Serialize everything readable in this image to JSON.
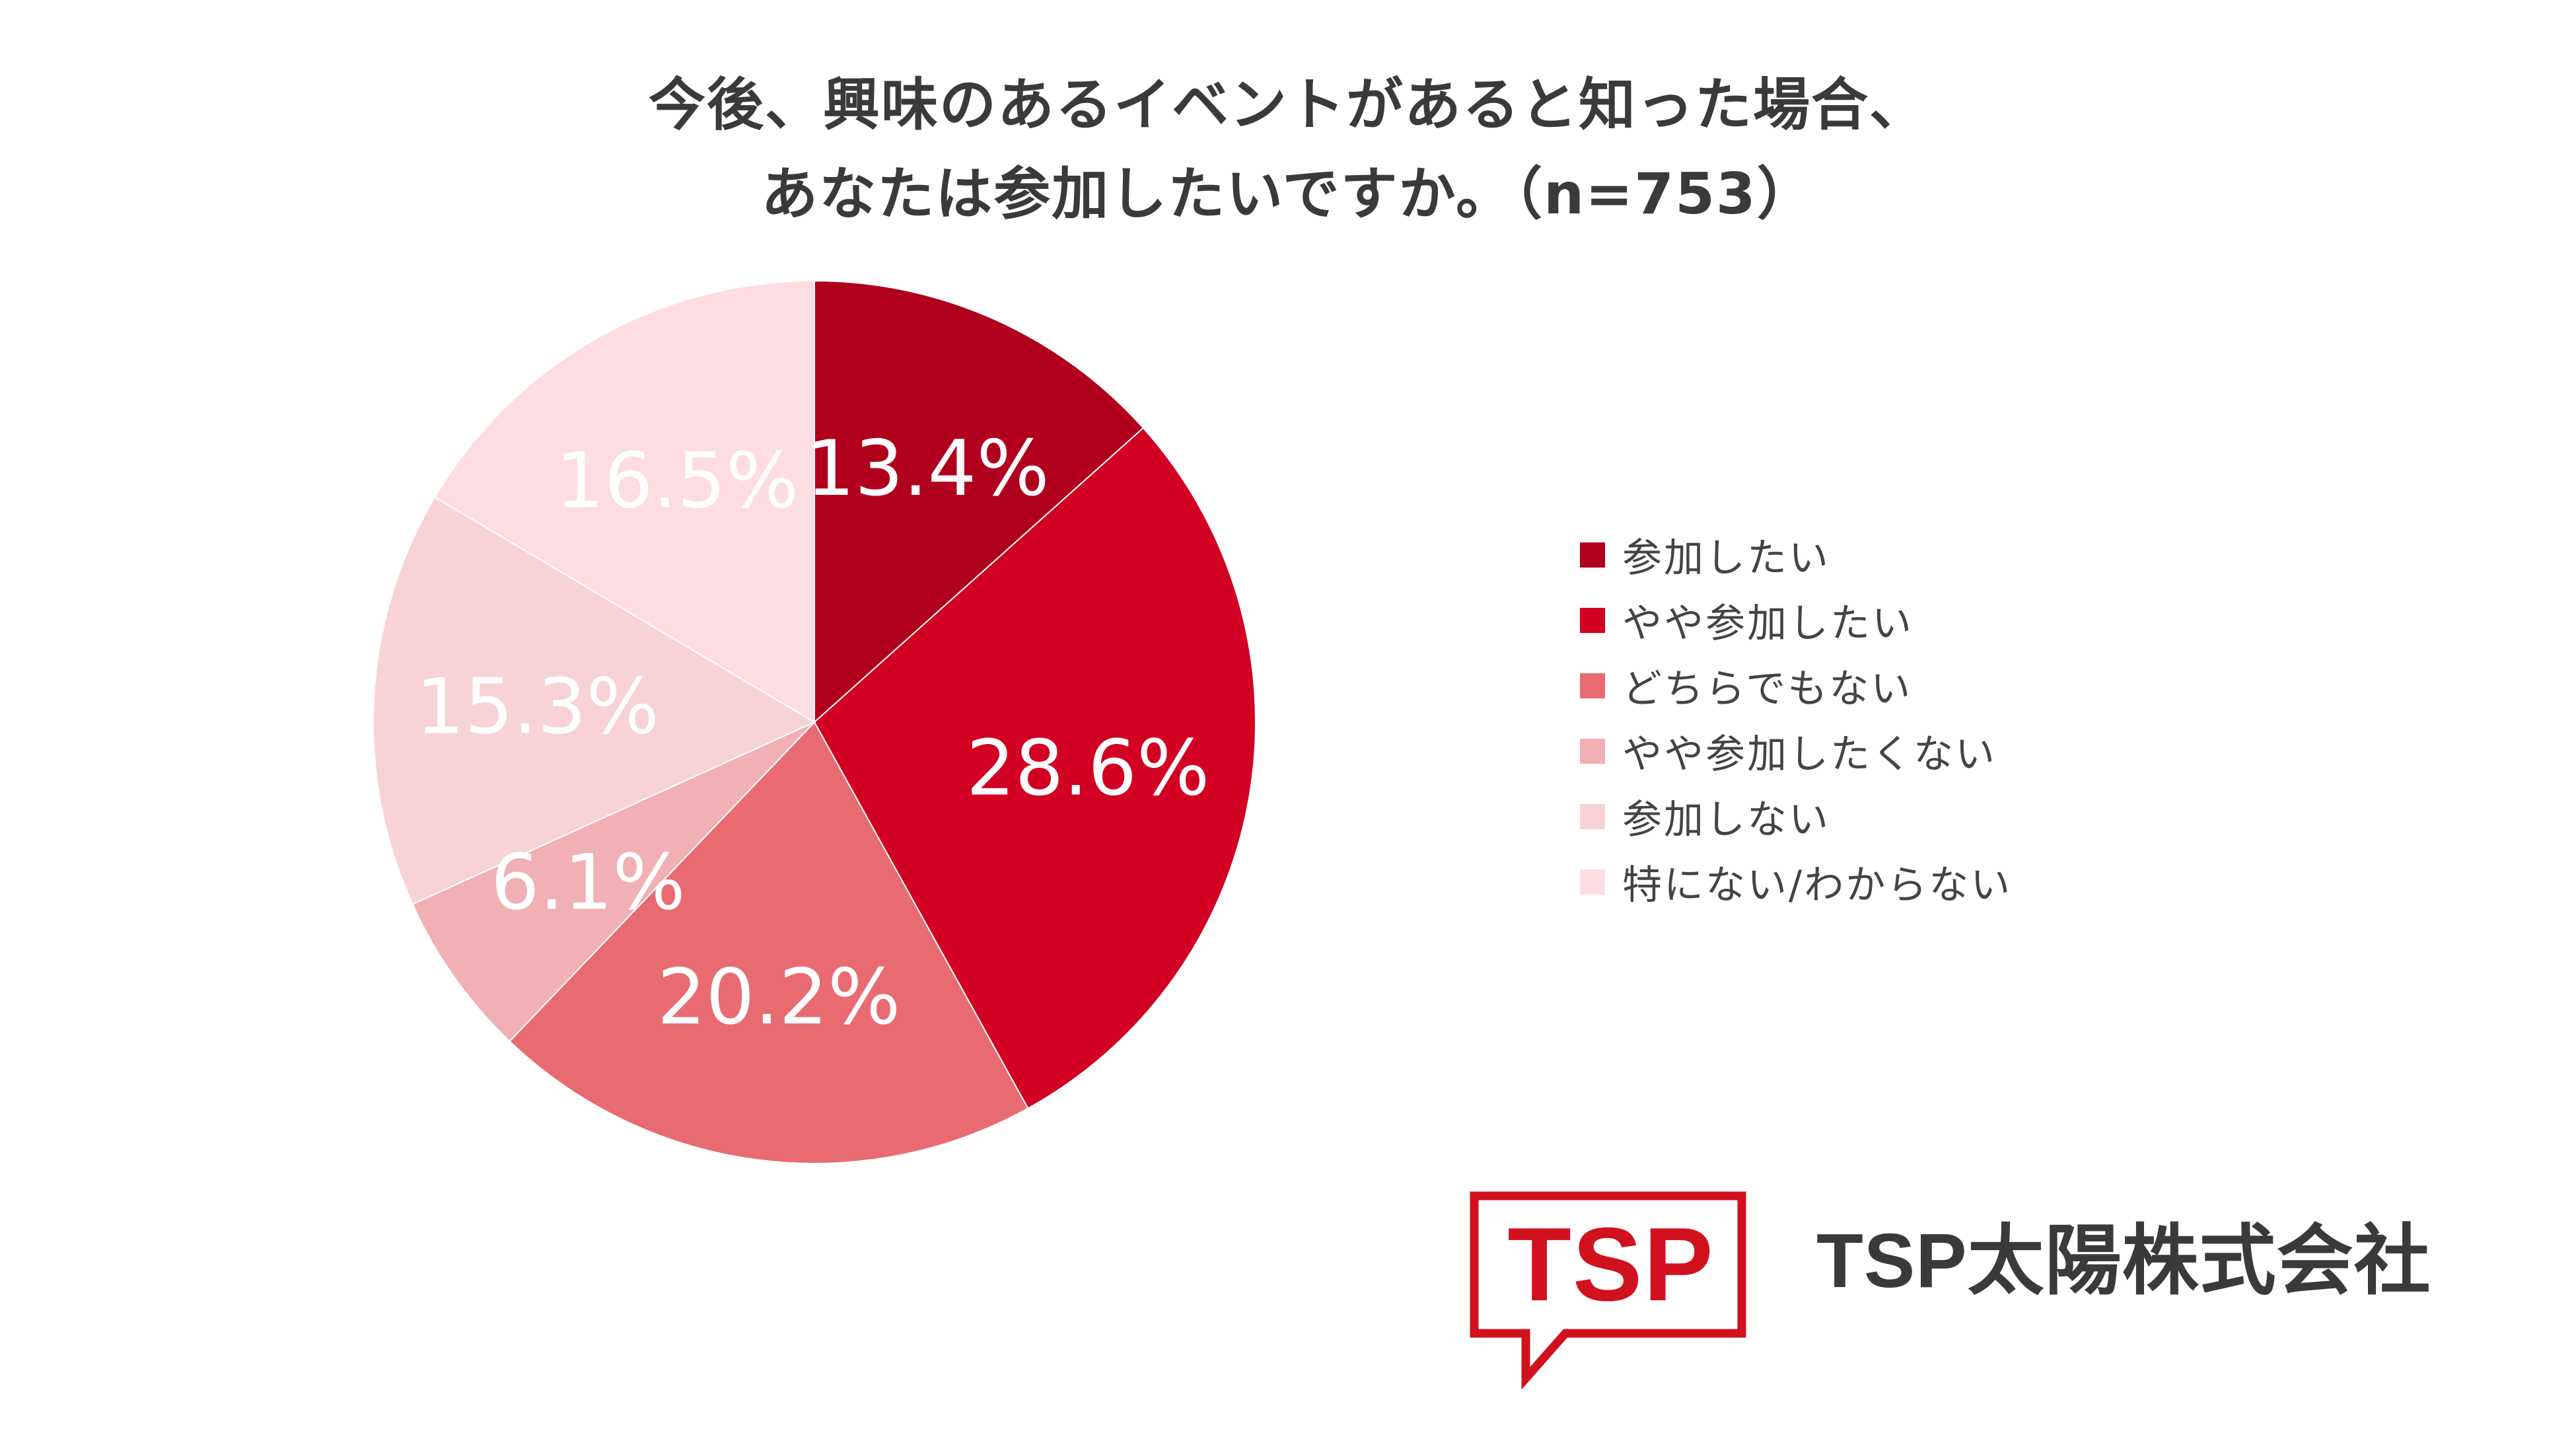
{
  "title": {
    "line1": "今後、興味のあるイベントがあると知った場合、",
    "line2": "あなたは参加したいですか。（n=753）"
  },
  "chart_data": {
    "type": "pie",
    "title": "今後、興味のあるイベントがあると知った場合、あなたは参加したいですか。（n=753）",
    "n": 753,
    "start": "12 o'clock",
    "direction": "clockwise",
    "legend_position": "right",
    "unit": "%",
    "slices": [
      {
        "label": "参加したい",
        "value": 13.4,
        "value_label": "13.4%",
        "color": "#b1001d"
      },
      {
        "label": "やや参加したい",
        "value": 28.6,
        "value_label": "28.6%",
        "color": "#d20022"
      },
      {
        "label": "どちらでもない",
        "value": 20.2,
        "value_label": "20.2%",
        "color": "#e96b72"
      },
      {
        "label": "やや参加したくない",
        "value": 6.1,
        "value_label": "6.1%",
        "color": "#f1b0b3"
      },
      {
        "label": "参加しない",
        "value": 15.3,
        "value_label": "15.3%",
        "color": "#f7d3d6"
      },
      {
        "label": "特にない/わからない",
        "value": 16.5,
        "value_label": "16.5%",
        "color": "#fddde2"
      }
    ]
  },
  "logo": {
    "mark_text": "TSP",
    "color": "#d2111f"
  },
  "company": {
    "name": "TSP太陽株式会社"
  }
}
